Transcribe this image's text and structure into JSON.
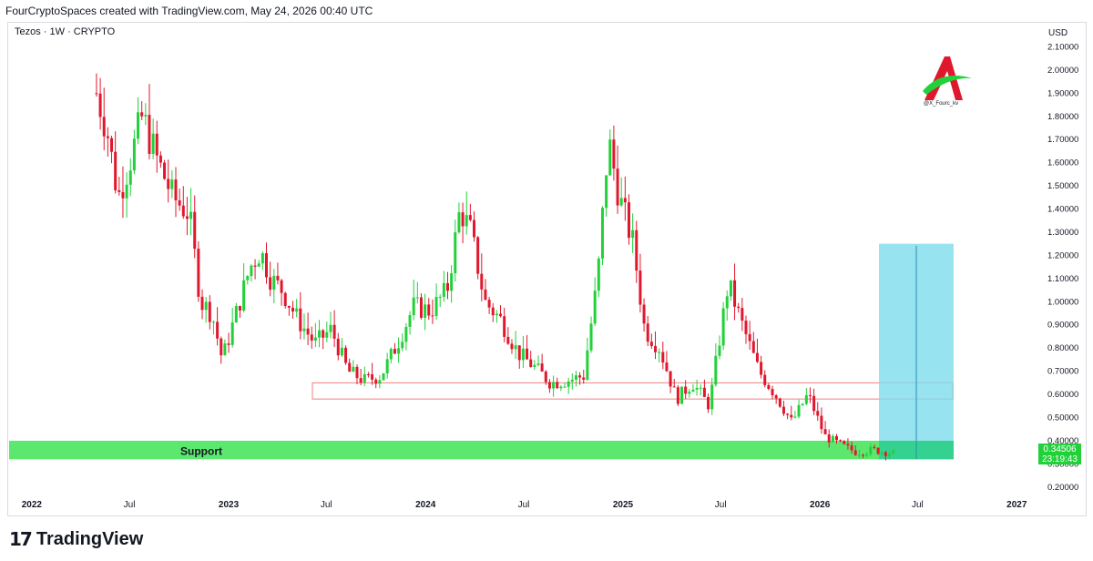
{
  "header": {
    "attribution": "FourCryptoSpaces created with TradingView.com, May 24, 2026 00:40 UTC"
  },
  "symbol": {
    "label": "Tezos · 1W · CRYPTO"
  },
  "watermark": {
    "handle": "@X_Fourc_kv"
  },
  "footer": {
    "brand": "TradingView",
    "brand_mark": "17"
  },
  "colors": {
    "up": "#22d13a",
    "down": "#e0182d",
    "support_zone": "#5ce86f",
    "target_box": "#7ddcec",
    "resistance_box_stroke": "#f08080"
  },
  "chart_data": {
    "type": "candlestick",
    "interval": "1W",
    "currency_label": "USD",
    "y_axis_ticks": [
      "2.10000",
      "2.00000",
      "1.90000",
      "1.80000",
      "1.70000",
      "1.60000",
      "1.50000",
      "1.40000",
      "1.30000",
      "1.20000",
      "1.10000",
      "1.00000",
      "0.90000",
      "0.80000",
      "0.70000",
      "0.60000",
      "0.50000",
      "0.40000",
      "0.30000",
      "0.20000"
    ],
    "x_axis_ticks": [
      "2022",
      "Jul",
      "2023",
      "Jul",
      "2024",
      "Jul",
      "2025",
      "Jul",
      "2026",
      "Jul",
      "2027"
    ],
    "ylim": [
      0.16,
      2.2
    ],
    "last_price": "0.34506",
    "countdown": "23:19:43",
    "support_zone": {
      "label": "Support",
      "low": 0.32,
      "high": 0.4
    },
    "resistance_zone": {
      "low": 0.58,
      "high": 0.65
    },
    "target_box": {
      "entry": 0.32,
      "target": 1.25,
      "stop_area_top": 0.4
    },
    "price_path": [
      [
        "2022-05-01",
        1.9
      ],
      [
        "2022-05-20",
        1.75
      ],
      [
        "2022-06-10",
        1.45
      ],
      [
        "2022-07-01",
        1.6
      ],
      [
        "2022-07-25",
        1.8
      ],
      [
        "2022-08-20",
        1.62
      ],
      [
        "2022-09-20",
        1.45
      ],
      [
        "2022-10-20",
        1.38
      ],
      [
        "2022-11-10",
        1.0
      ],
      [
        "2022-12-01",
        0.95
      ],
      [
        "2022-12-20",
        0.75
      ],
      [
        "2023-01-15",
        0.95
      ],
      [
        "2023-02-10",
        1.15
      ],
      [
        "2023-03-01",
        1.22
      ],
      [
        "2023-03-20",
        1.1
      ],
      [
        "2023-04-10",
        1.05
      ],
      [
        "2023-05-10",
        0.92
      ],
      [
        "2023-06-10",
        0.82
      ],
      [
        "2023-07-10",
        0.88
      ],
      [
        "2023-08-10",
        0.7
      ],
      [
        "2023-09-10",
        0.66
      ],
      [
        "2023-10-10",
        0.68
      ],
      [
        "2023-11-10",
        0.82
      ],
      [
        "2023-12-10",
        0.98
      ],
      [
        "2024-01-10",
        0.96
      ],
      [
        "2024-02-10",
        1.05
      ],
      [
        "2024-03-05",
        1.4
      ],
      [
        "2024-03-25",
        1.3
      ],
      [
        "2024-04-20",
        1.0
      ],
      [
        "2024-05-20",
        0.92
      ],
      [
        "2024-06-20",
        0.78
      ],
      [
        "2024-07-20",
        0.72
      ],
      [
        "2024-08-20",
        0.65
      ],
      [
        "2024-09-20",
        0.66
      ],
      [
        "2024-10-20",
        0.68
      ],
      [
        "2024-11-15",
        1.1
      ],
      [
        "2024-12-05",
        1.7
      ],
      [
        "2024-12-25",
        1.45
      ],
      [
        "2025-01-20",
        1.25
      ],
      [
        "2025-02-10",
        0.88
      ],
      [
        "2025-03-10",
        0.8
      ],
      [
        "2025-04-10",
        0.58
      ],
      [
        "2025-05-10",
        0.65
      ],
      [
        "2025-06-10",
        0.55
      ],
      [
        "2025-07-15",
        1.08
      ],
      [
        "2025-08-10",
        0.9
      ],
      [
        "2025-09-10",
        0.7
      ],
      [
        "2025-10-10",
        0.6
      ],
      [
        "2025-11-10",
        0.48
      ],
      [
        "2025-12-10",
        0.6
      ],
      [
        "2026-01-10",
        0.42
      ],
      [
        "2026-02-10",
        0.38
      ],
      [
        "2026-03-10",
        0.35
      ],
      [
        "2026-04-10",
        0.36
      ],
      [
        "2026-05-20",
        0.345
      ]
    ]
  }
}
